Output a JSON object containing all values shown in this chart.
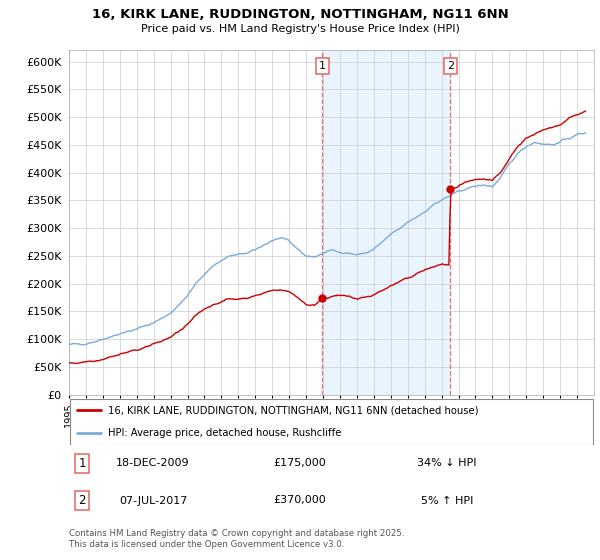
{
  "title_line1": "16, KIRK LANE, RUDDINGTON, NOTTINGHAM, NG11 6NN",
  "title_line2": "Price paid vs. HM Land Registry's House Price Index (HPI)",
  "ytick_values": [
    0,
    50000,
    100000,
    150000,
    200000,
    250000,
    300000,
    350000,
    400000,
    450000,
    500000,
    550000,
    600000
  ],
  "ylim": [
    0,
    620000
  ],
  "legend_label_red": "16, KIRK LANE, RUDDINGTON, NOTTINGHAM, NG11 6NN (detached house)",
  "legend_label_blue": "HPI: Average price, detached house, Rushcliffe",
  "annotation1_box": "1",
  "annotation1_date": "18-DEC-2009",
  "annotation1_price": "£175,000",
  "annotation1_hpi": "34% ↓ HPI",
  "annotation2_box": "2",
  "annotation2_date": "07-JUL-2017",
  "annotation2_price": "£370,000",
  "annotation2_hpi": "5% ↑ HPI",
  "footer": "Contains HM Land Registry data © Crown copyright and database right 2025.\nThis data is licensed under the Open Government Licence v3.0.",
  "color_red": "#cc0000",
  "color_blue": "#7aabdb",
  "color_shade": "#ddeeff",
  "vline_color": "#e87070",
  "sale1_year": 2009.96,
  "sale2_year": 2017.52,
  "xmin": 1995,
  "xmax": 2026,
  "hpi_pts": [
    [
      1995.0,
      90000
    ],
    [
      1995.5,
      91000
    ],
    [
      1996.0,
      93000
    ],
    [
      1996.5,
      96000
    ],
    [
      1997.0,
      100000
    ],
    [
      1997.5,
      106000
    ],
    [
      1998.0,
      110000
    ],
    [
      1998.5,
      114000
    ],
    [
      1999.0,
      118000
    ],
    [
      1999.5,
      124000
    ],
    [
      2000.0,
      130000
    ],
    [
      2000.5,
      138000
    ],
    [
      2001.0,
      148000
    ],
    [
      2001.5,
      162000
    ],
    [
      2002.0,
      178000
    ],
    [
      2002.5,
      200000
    ],
    [
      2003.0,
      218000
    ],
    [
      2003.5,
      232000
    ],
    [
      2004.0,
      242000
    ],
    [
      2004.5,
      250000
    ],
    [
      2005.0,
      252000
    ],
    [
      2005.5,
      255000
    ],
    [
      2006.0,
      260000
    ],
    [
      2006.5,
      270000
    ],
    [
      2007.0,
      278000
    ],
    [
      2007.5,
      282000
    ],
    [
      2008.0,
      275000
    ],
    [
      2008.5,
      263000
    ],
    [
      2009.0,
      250000
    ],
    [
      2009.5,
      248000
    ],
    [
      2010.0,
      255000
    ],
    [
      2010.5,
      260000
    ],
    [
      2011.0,
      258000
    ],
    [
      2011.5,
      255000
    ],
    [
      2012.0,
      252000
    ],
    [
      2012.5,
      255000
    ],
    [
      2013.0,
      262000
    ],
    [
      2013.5,
      275000
    ],
    [
      2014.0,
      288000
    ],
    [
      2014.5,
      298000
    ],
    [
      2015.0,
      310000
    ],
    [
      2015.5,
      320000
    ],
    [
      2016.0,
      330000
    ],
    [
      2016.5,
      342000
    ],
    [
      2017.0,
      350000
    ],
    [
      2017.5,
      358000
    ],
    [
      2018.0,
      365000
    ],
    [
      2018.5,
      372000
    ],
    [
      2019.0,
      375000
    ],
    [
      2019.5,
      378000
    ],
    [
      2020.0,
      375000
    ],
    [
      2020.5,
      390000
    ],
    [
      2021.0,
      415000
    ],
    [
      2021.5,
      435000
    ],
    [
      2022.0,
      448000
    ],
    [
      2022.5,
      455000
    ],
    [
      2023.0,
      452000
    ],
    [
      2023.5,
      450000
    ],
    [
      2024.0,
      455000
    ],
    [
      2024.5,
      462000
    ],
    [
      2025.0,
      468000
    ],
    [
      2025.5,
      472000
    ]
  ],
  "prop_pts": [
    [
      1995.0,
      57000
    ],
    [
      1995.5,
      58000
    ],
    [
      1996.0,
      60000
    ],
    [
      1996.5,
      62000
    ],
    [
      1997.0,
      65000
    ],
    [
      1997.5,
      69000
    ],
    [
      1998.0,
      73000
    ],
    [
      1998.5,
      77000
    ],
    [
      1999.0,
      81000
    ],
    [
      1999.5,
      86000
    ],
    [
      2000.0,
      91000
    ],
    [
      2000.5,
      97000
    ],
    [
      2001.0,
      104000
    ],
    [
      2001.5,
      114000
    ],
    [
      2002.0,
      126000
    ],
    [
      2002.5,
      142000
    ],
    [
      2003.0,
      155000
    ],
    [
      2003.5,
      163000
    ],
    [
      2004.0,
      168000
    ],
    [
      2004.5,
      172000
    ],
    [
      2005.0,
      173000
    ],
    [
      2005.5,
      175000
    ],
    [
      2006.0,
      178000
    ],
    [
      2006.5,
      183000
    ],
    [
      2007.0,
      188000
    ],
    [
      2007.5,
      190000
    ],
    [
      2008.0,
      185000
    ],
    [
      2008.5,
      176000
    ],
    [
      2009.0,
      163000
    ],
    [
      2009.5,
      160000
    ],
    [
      2009.96,
      175000
    ],
    [
      2010.0,
      175000
    ],
    [
      2010.5,
      177000
    ],
    [
      2011.0,
      178000
    ],
    [
      2011.5,
      176000
    ],
    [
      2012.0,
      173000
    ],
    [
      2012.5,
      175000
    ],
    [
      2013.0,
      180000
    ],
    [
      2013.5,
      188000
    ],
    [
      2014.0,
      196000
    ],
    [
      2014.5,
      202000
    ],
    [
      2015.0,
      210000
    ],
    [
      2015.5,
      218000
    ],
    [
      2016.0,
      224000
    ],
    [
      2016.5,
      230000
    ],
    [
      2017.0,
      235000
    ],
    [
      2017.45,
      232000
    ],
    [
      2017.52,
      370000
    ],
    [
      2017.6,
      370000
    ],
    [
      2018.0,
      375000
    ],
    [
      2018.5,
      382000
    ],
    [
      2019.0,
      385000
    ],
    [
      2019.5,
      388000
    ],
    [
      2020.0,
      385000
    ],
    [
      2020.5,
      400000
    ],
    [
      2021.0,
      425000
    ],
    [
      2021.5,
      448000
    ],
    [
      2022.0,
      462000
    ],
    [
      2022.5,
      470000
    ],
    [
      2023.0,
      475000
    ],
    [
      2023.5,
      480000
    ],
    [
      2024.0,
      488000
    ],
    [
      2024.5,
      498000
    ],
    [
      2025.0,
      505000
    ],
    [
      2025.5,
      510000
    ]
  ]
}
